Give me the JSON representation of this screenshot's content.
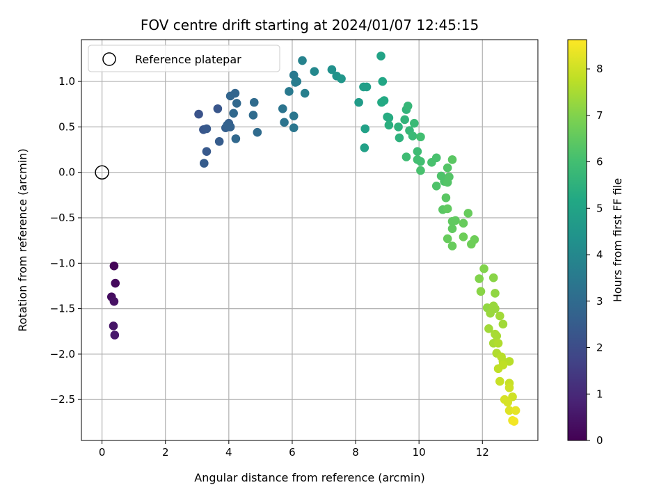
{
  "chart_data": {
    "type": "scatter",
    "title": "FOV centre drift starting at 2024/01/07 12:45:15",
    "xlabel": "Angular distance from reference (arcmin)",
    "ylabel": "Rotation from reference (arcmin)",
    "colorbar_label": "Hours from first FF file",
    "xlim": [
      -0.65,
      13.75
    ],
    "ylim": [
      -2.95,
      1.46
    ],
    "clim": [
      0,
      8.63
    ],
    "x_ticks": [
      0,
      2,
      4,
      6,
      8,
      10,
      12
    ],
    "y_ticks": [
      1.0,
      0.5,
      0.0,
      -0.5,
      -1.0,
      -1.5,
      -2.0,
      -2.5
    ],
    "y_tick_labels": [
      "1.0",
      "0.5",
      "0.0",
      "−0.5",
      "−1.0",
      "−1.5",
      "−2.0",
      "−2.5"
    ],
    "colorbar_ticks": [
      0,
      1,
      2,
      3,
      4,
      5,
      6,
      7,
      8
    ],
    "grid": true,
    "legend": {
      "position": "top-left",
      "entries": [
        "Reference platepar"
      ]
    },
    "reference_point": {
      "x": 0,
      "y": 0
    },
    "points": [
      {
        "x": 0.38,
        "y": -1.03,
        "h": 0.1
      },
      {
        "x": 0.42,
        "y": -1.22,
        "h": 0.2
      },
      {
        "x": 0.3,
        "y": -1.37,
        "h": 0.3
      },
      {
        "x": 0.38,
        "y": -1.42,
        "h": 0.4
      },
      {
        "x": 0.36,
        "y": -1.69,
        "h": 0.5
      },
      {
        "x": 0.4,
        "y": -1.79,
        "h": 0.6
      },
      {
        "x": 3.05,
        "y": 0.64,
        "h": 2.2
      },
      {
        "x": 3.2,
        "y": 0.47,
        "h": 2.3
      },
      {
        "x": 3.3,
        "y": 0.48,
        "h": 2.4
      },
      {
        "x": 3.65,
        "y": 0.7,
        "h": 2.3
      },
      {
        "x": 3.3,
        "y": 0.23,
        "h": 2.4
      },
      {
        "x": 3.22,
        "y": 0.1,
        "h": 2.5
      },
      {
        "x": 3.7,
        "y": 0.34,
        "h": 2.5
      },
      {
        "x": 3.9,
        "y": 0.49,
        "h": 2.6
      },
      {
        "x": 4.0,
        "y": 0.54,
        "h": 2.6
      },
      {
        "x": 3.95,
        "y": 0.52,
        "h": 2.7
      },
      {
        "x": 4.05,
        "y": 0.5,
        "h": 2.7
      },
      {
        "x": 4.05,
        "y": 0.84,
        "h": 2.8
      },
      {
        "x": 4.2,
        "y": 0.87,
        "h": 2.8
      },
      {
        "x": 4.15,
        "y": 0.65,
        "h": 2.9
      },
      {
        "x": 4.25,
        "y": 0.76,
        "h": 2.9
      },
      {
        "x": 4.22,
        "y": 0.37,
        "h": 2.9
      },
      {
        "x": 4.8,
        "y": 0.77,
        "h": 3.0
      },
      {
        "x": 4.77,
        "y": 0.63,
        "h": 3.0
      },
      {
        "x": 4.9,
        "y": 0.44,
        "h": 3.0
      },
      {
        "x": 5.7,
        "y": 0.7,
        "h": 3.3
      },
      {
        "x": 5.75,
        "y": 0.55,
        "h": 3.3
      },
      {
        "x": 6.05,
        "y": 0.62,
        "h": 3.4
      },
      {
        "x": 6.05,
        "y": 0.49,
        "h": 3.4
      },
      {
        "x": 5.9,
        "y": 0.89,
        "h": 3.5
      },
      {
        "x": 6.05,
        "y": 1.07,
        "h": 3.5
      },
      {
        "x": 6.15,
        "y": 1.0,
        "h": 3.6
      },
      {
        "x": 6.1,
        "y": 0.99,
        "h": 3.6
      },
      {
        "x": 6.4,
        "y": 0.87,
        "h": 3.7
      },
      {
        "x": 6.32,
        "y": 1.23,
        "h": 3.8
      },
      {
        "x": 6.7,
        "y": 1.11,
        "h": 4.0
      },
      {
        "x": 7.25,
        "y": 1.13,
        "h": 4.3
      },
      {
        "x": 7.4,
        "y": 1.06,
        "h": 4.4
      },
      {
        "x": 7.55,
        "y": 1.03,
        "h": 4.5
      },
      {
        "x": 8.1,
        "y": 0.77,
        "h": 4.7
      },
      {
        "x": 8.25,
        "y": 0.94,
        "h": 4.8
      },
      {
        "x": 8.35,
        "y": 0.94,
        "h": 4.8
      },
      {
        "x": 8.3,
        "y": 0.48,
        "h": 4.9
      },
      {
        "x": 8.28,
        "y": 0.27,
        "h": 4.9
      },
      {
        "x": 8.8,
        "y": 1.28,
        "h": 5.0
      },
      {
        "x": 8.85,
        "y": 1.0,
        "h": 5.1
      },
      {
        "x": 8.82,
        "y": 0.77,
        "h": 5.2
      },
      {
        "x": 8.9,
        "y": 0.79,
        "h": 5.2
      },
      {
        "x": 9.0,
        "y": 0.61,
        "h": 5.3
      },
      {
        "x": 9.05,
        "y": 0.6,
        "h": 5.3
      },
      {
        "x": 9.05,
        "y": 0.52,
        "h": 5.4
      },
      {
        "x": 9.35,
        "y": 0.5,
        "h": 5.5
      },
      {
        "x": 9.38,
        "y": 0.38,
        "h": 5.5
      },
      {
        "x": 9.55,
        "y": 0.58,
        "h": 5.6
      },
      {
        "x": 9.6,
        "y": 0.69,
        "h": 5.6
      },
      {
        "x": 9.65,
        "y": 0.73,
        "h": 5.7
      },
      {
        "x": 9.7,
        "y": 0.46,
        "h": 5.7
      },
      {
        "x": 9.8,
        "y": 0.4,
        "h": 5.8
      },
      {
        "x": 9.85,
        "y": 0.54,
        "h": 5.8
      },
      {
        "x": 9.6,
        "y": 0.17,
        "h": 5.9
      },
      {
        "x": 9.95,
        "y": 0.23,
        "h": 5.9
      },
      {
        "x": 9.95,
        "y": 0.14,
        "h": 6.0
      },
      {
        "x": 10.05,
        "y": 0.12,
        "h": 6.0
      },
      {
        "x": 10.05,
        "y": 0.39,
        "h": 6.0
      },
      {
        "x": 10.05,
        "y": 0.02,
        "h": 6.1
      },
      {
        "x": 10.4,
        "y": 0.11,
        "h": 6.1
      },
      {
        "x": 10.55,
        "y": 0.16,
        "h": 6.1
      },
      {
        "x": 10.55,
        "y": -0.15,
        "h": 6.2
      },
      {
        "x": 10.7,
        "y": -0.04,
        "h": 6.2
      },
      {
        "x": 10.8,
        "y": -0.1,
        "h": 6.2
      },
      {
        "x": 10.9,
        "y": 0.05,
        "h": 6.3
      },
      {
        "x": 10.95,
        "y": -0.05,
        "h": 6.3
      },
      {
        "x": 10.9,
        "y": -0.11,
        "h": 6.3
      },
      {
        "x": 11.05,
        "y": 0.14,
        "h": 6.4
      },
      {
        "x": 10.85,
        "y": -0.28,
        "h": 6.4
      },
      {
        "x": 10.75,
        "y": -0.41,
        "h": 6.4
      },
      {
        "x": 10.9,
        "y": -0.4,
        "h": 6.5
      },
      {
        "x": 11.05,
        "y": -0.54,
        "h": 6.5
      },
      {
        "x": 11.15,
        "y": -0.53,
        "h": 6.5
      },
      {
        "x": 11.05,
        "y": -0.62,
        "h": 6.5
      },
      {
        "x": 11.4,
        "y": -0.56,
        "h": 6.6
      },
      {
        "x": 11.55,
        "y": -0.45,
        "h": 6.6
      },
      {
        "x": 10.9,
        "y": -0.73,
        "h": 6.6
      },
      {
        "x": 11.05,
        "y": -0.81,
        "h": 6.6
      },
      {
        "x": 11.4,
        "y": -0.71,
        "h": 6.7
      },
      {
        "x": 11.65,
        "y": -0.79,
        "h": 6.7
      },
      {
        "x": 11.75,
        "y": -0.74,
        "h": 6.7
      },
      {
        "x": 12.05,
        "y": -1.06,
        "h": 7.0
      },
      {
        "x": 11.9,
        "y": -1.17,
        "h": 7.0
      },
      {
        "x": 12.35,
        "y": -1.16,
        "h": 7.1
      },
      {
        "x": 11.95,
        "y": -1.31,
        "h": 7.1
      },
      {
        "x": 12.4,
        "y": -1.33,
        "h": 7.2
      },
      {
        "x": 12.15,
        "y": -1.49,
        "h": 7.2
      },
      {
        "x": 12.25,
        "y": -1.55,
        "h": 7.3
      },
      {
        "x": 12.4,
        "y": -1.5,
        "h": 7.3
      },
      {
        "x": 12.35,
        "y": -1.47,
        "h": 7.3
      },
      {
        "x": 12.55,
        "y": -1.58,
        "h": 7.4
      },
      {
        "x": 12.65,
        "y": -1.67,
        "h": 7.4
      },
      {
        "x": 12.2,
        "y": -1.72,
        "h": 7.4
      },
      {
        "x": 12.4,
        "y": -1.78,
        "h": 7.5
      },
      {
        "x": 12.45,
        "y": -1.8,
        "h": 7.5
      },
      {
        "x": 12.35,
        "y": -1.88,
        "h": 7.5
      },
      {
        "x": 12.5,
        "y": -1.88,
        "h": 7.6
      },
      {
        "x": 12.45,
        "y": -1.99,
        "h": 7.6
      },
      {
        "x": 12.6,
        "y": -2.03,
        "h": 7.7
      },
      {
        "x": 12.65,
        "y": -2.08,
        "h": 7.7
      },
      {
        "x": 12.85,
        "y": -2.08,
        "h": 7.7
      },
      {
        "x": 12.65,
        "y": -2.12,
        "h": 7.8
      },
      {
        "x": 12.5,
        "y": -2.16,
        "h": 7.8
      },
      {
        "x": 12.55,
        "y": -2.3,
        "h": 7.9
      },
      {
        "x": 12.85,
        "y": -2.32,
        "h": 7.9
      },
      {
        "x": 12.85,
        "y": -2.37,
        "h": 8.0
      },
      {
        "x": 12.95,
        "y": -2.47,
        "h": 8.0
      },
      {
        "x": 12.7,
        "y": -2.5,
        "h": 8.1
      },
      {
        "x": 12.8,
        "y": -2.53,
        "h": 8.1
      },
      {
        "x": 12.85,
        "y": -2.62,
        "h": 8.2
      },
      {
        "x": 13.05,
        "y": -2.62,
        "h": 8.3
      },
      {
        "x": 12.95,
        "y": -2.73,
        "h": 8.4
      },
      {
        "x": 13.0,
        "y": -2.74,
        "h": 8.5
      }
    ]
  }
}
